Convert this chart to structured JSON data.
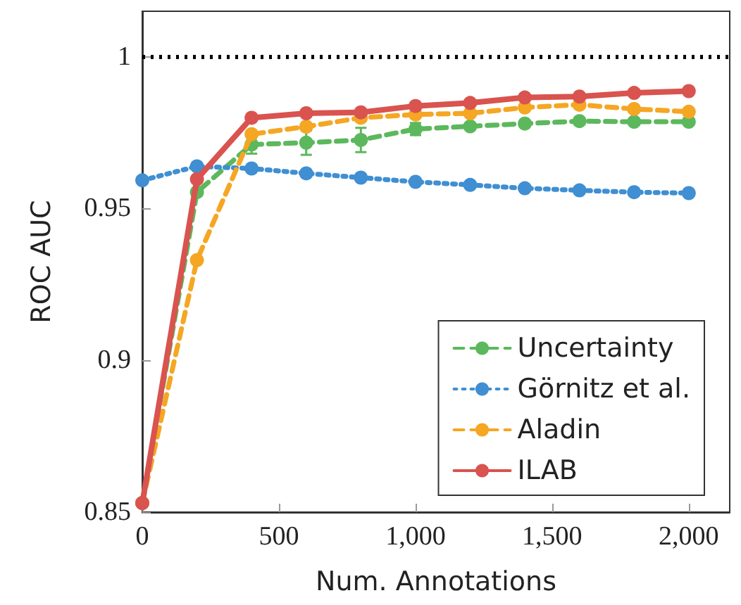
{
  "chart_data": {
    "type": "line",
    "xlabel": "Num. Annotations",
    "ylabel": "ROC AUC",
    "x": [
      0,
      200,
      400,
      600,
      800,
      1000,
      1200,
      1400,
      1600,
      1800,
      2000
    ],
    "series": [
      {
        "name": "Uncertainty",
        "color": "#5cb85c",
        "line_style": "dashed",
        "values": [
          0.853,
          0.9554,
          0.9711,
          0.9717,
          0.9726,
          0.9762,
          0.9771,
          0.978,
          0.9788,
          0.9786,
          0.9786
        ],
        "errors": [
          null,
          0.001,
          0.003,
          0.004,
          0.004,
          0.002,
          0.001,
          0.001,
          0.001,
          0.001,
          0.001
        ]
      },
      {
        "name": "Görnitz et al.",
        "color": "#3f8fd2",
        "line_style": "dotted",
        "values": [
          0.9593,
          0.9639,
          0.9632,
          0.9616,
          0.9602,
          0.9588,
          0.9578,
          0.9567,
          0.956,
          0.9554,
          0.9551
        ]
      },
      {
        "name": "Aladin",
        "color": "#f5a623",
        "line_style": "dashed",
        "values": [
          0.853,
          0.933,
          0.9745,
          0.977,
          0.9799,
          0.981,
          0.9814,
          0.9833,
          0.9842,
          0.9828,
          0.9819
        ]
      },
      {
        "name": "ILAB",
        "color": "#d9534f",
        "line_style": "solid",
        "values": [
          0.853,
          0.9597,
          0.9799,
          0.9814,
          0.9817,
          0.9838,
          0.9848,
          0.9866,
          0.9869,
          0.9881,
          0.9887
        ]
      }
    ],
    "xlim": [
      0,
      2150
    ],
    "xticks": [
      0,
      500,
      {
        "value": 1000,
        "label": "1,000"
      },
      {
        "value": 1500,
        "label": "1,500"
      },
      {
        "value": 2000,
        "label": "2,000"
      }
    ],
    "ylim": [
      0.85,
      1.015
    ],
    "yticks": [
      0.85,
      0.9,
      0.95,
      1
    ],
    "ref_lines": [
      {
        "axis": "y",
        "value": 1,
        "label": null,
        "color": "#000000",
        "line_style": "dotted"
      }
    ],
    "grid": false,
    "legend": "bottom right",
    "marker": "circle"
  }
}
